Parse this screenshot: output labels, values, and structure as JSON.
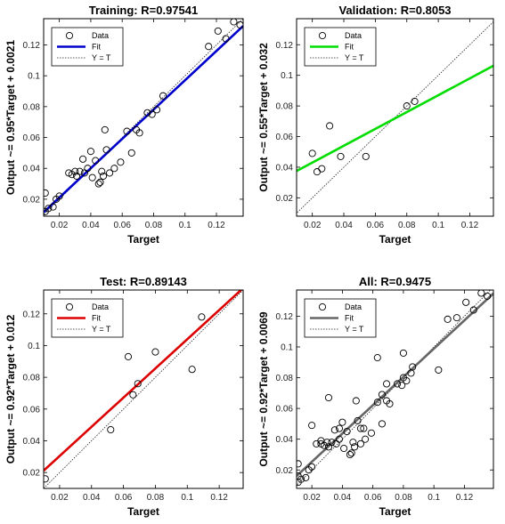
{
  "chart_data": [
    {
      "type": "scatter",
      "title": "Training: R=0.97541",
      "xlabel": "Target",
      "ylabel": "Output ~= 0.95*Target + 0.0021",
      "xlim": [
        0.01,
        0.137
      ],
      "ylim": [
        0.009,
        0.137
      ],
      "xticks": [
        0.02,
        0.04,
        0.06,
        0.08,
        0.1,
        0.12
      ],
      "yticks": [
        0.02,
        0.04,
        0.06,
        0.08,
        0.1,
        0.12
      ],
      "fit": {
        "slope": 0.95,
        "intercept": 0.0021,
        "color": "#0000cc"
      },
      "legend": {
        "position": "top-left",
        "entries": [
          "Data",
          "Fit",
          "Y = T"
        ]
      },
      "points": [
        [
          0.011,
          0.012
        ],
        [
          0.011,
          0.024
        ],
        [
          0.013,
          0.014
        ],
        [
          0.016,
          0.015
        ],
        [
          0.018,
          0.02
        ],
        [
          0.02,
          0.022
        ],
        [
          0.026,
          0.037
        ],
        [
          0.028,
          0.036
        ],
        [
          0.03,
          0.038
        ],
        [
          0.031,
          0.035
        ],
        [
          0.033,
          0.038
        ],
        [
          0.035,
          0.046
        ],
        [
          0.036,
          0.037
        ],
        [
          0.038,
          0.04
        ],
        [
          0.04,
          0.051
        ],
        [
          0.041,
          0.034
        ],
        [
          0.043,
          0.045
        ],
        [
          0.045,
          0.03
        ],
        [
          0.046,
          0.031
        ],
        [
          0.047,
          0.038
        ],
        [
          0.048,
          0.035
        ],
        [
          0.049,
          0.065
        ],
        [
          0.05,
          0.052
        ],
        [
          0.052,
          0.037
        ],
        [
          0.055,
          0.04
        ],
        [
          0.059,
          0.044
        ],
        [
          0.063,
          0.064
        ],
        [
          0.066,
          0.05
        ],
        [
          0.069,
          0.065
        ],
        [
          0.071,
          0.063
        ],
        [
          0.076,
          0.076
        ],
        [
          0.079,
          0.075
        ],
        [
          0.082,
          0.078
        ],
        [
          0.086,
          0.087
        ],
        [
          0.115,
          0.119
        ],
        [
          0.121,
          0.129
        ],
        [
          0.126,
          0.124
        ],
        [
          0.131,
          0.135
        ],
        [
          0.135,
          0.133
        ]
      ]
    },
    {
      "type": "scatter",
      "title": "Validation: R=0.8053",
      "xlabel": "Target",
      "ylabel": "Output ~= 0.55*Target + 0.032",
      "xlim": [
        0.01,
        0.135
      ],
      "ylim": [
        0.008,
        0.137
      ],
      "xticks": [
        0.02,
        0.04,
        0.06,
        0.08,
        0.1,
        0.12
      ],
      "yticks": [
        0.02,
        0.04,
        0.06,
        0.08,
        0.1,
        0.12
      ],
      "fit": {
        "slope": 0.55,
        "intercept": 0.032,
        "color": "#00dd00"
      },
      "legend": {
        "position": "top-left",
        "entries": [
          "Data",
          "Fit",
          "Y = T"
        ]
      },
      "points": [
        [
          0.02,
          0.049
        ],
        [
          0.023,
          0.037
        ],
        [
          0.026,
          0.039
        ],
        [
          0.031,
          0.067
        ],
        [
          0.038,
          0.047
        ],
        [
          0.054,
          0.047
        ],
        [
          0.08,
          0.08
        ],
        [
          0.085,
          0.083
        ]
      ]
    },
    {
      "type": "scatter",
      "title": "Test: R=0.89143",
      "xlabel": "Target",
      "ylabel": "Output ~= 0.92*Target + 0.012",
      "xlim": [
        0.01,
        0.135
      ],
      "ylim": [
        0.01,
        0.135
      ],
      "xticks": [
        0.02,
        0.04,
        0.06,
        0.08,
        0.1,
        0.12
      ],
      "yticks": [
        0.02,
        0.04,
        0.06,
        0.08,
        0.1,
        0.12
      ],
      "fit": {
        "slope": 0.92,
        "intercept": 0.012,
        "color": "#dd0000"
      },
      "legend": {
        "position": "top-left",
        "entries": [
          "Data",
          "Fit",
          "Y = T"
        ]
      },
      "points": [
        [
          0.011,
          0.016
        ],
        [
          0.052,
          0.047
        ],
        [
          0.063,
          0.093
        ],
        [
          0.066,
          0.069
        ],
        [
          0.069,
          0.076
        ],
        [
          0.08,
          0.096
        ],
        [
          0.103,
          0.085
        ],
        [
          0.109,
          0.118
        ]
      ]
    },
    {
      "type": "scatter",
      "title": "All: R=0.9475",
      "xlabel": "Target",
      "ylabel": "Output ~= 0.92*Target + 0.0069",
      "xlim": [
        0.01,
        0.139
      ],
      "ylim": [
        0.008,
        0.137
      ],
      "xticks": [
        0.02,
        0.04,
        0.06,
        0.08,
        0.1,
        0.12
      ],
      "yticks": [
        0.02,
        0.04,
        0.06,
        0.08,
        0.1,
        0.12
      ],
      "fit": {
        "slope": 0.92,
        "intercept": 0.0069,
        "color": "#666666"
      },
      "legend": {
        "position": "top-left",
        "entries": [
          "Data",
          "Fit",
          "Y = T"
        ]
      },
      "points": [
        [
          0.011,
          0.012
        ],
        [
          0.011,
          0.024
        ],
        [
          0.011,
          0.016
        ],
        [
          0.013,
          0.014
        ],
        [
          0.016,
          0.015
        ],
        [
          0.018,
          0.02
        ],
        [
          0.02,
          0.049
        ],
        [
          0.02,
          0.022
        ],
        [
          0.023,
          0.037
        ],
        [
          0.026,
          0.039
        ],
        [
          0.026,
          0.037
        ],
        [
          0.028,
          0.036
        ],
        [
          0.03,
          0.038
        ],
        [
          0.031,
          0.067
        ],
        [
          0.031,
          0.035
        ],
        [
          0.033,
          0.038
        ],
        [
          0.035,
          0.046
        ],
        [
          0.036,
          0.037
        ],
        [
          0.038,
          0.047
        ],
        [
          0.038,
          0.04
        ],
        [
          0.04,
          0.051
        ],
        [
          0.041,
          0.034
        ],
        [
          0.043,
          0.045
        ],
        [
          0.045,
          0.03
        ],
        [
          0.046,
          0.031
        ],
        [
          0.047,
          0.038
        ],
        [
          0.048,
          0.035
        ],
        [
          0.049,
          0.065
        ],
        [
          0.05,
          0.052
        ],
        [
          0.052,
          0.047
        ],
        [
          0.052,
          0.037
        ],
        [
          0.054,
          0.047
        ],
        [
          0.055,
          0.04
        ],
        [
          0.059,
          0.044
        ],
        [
          0.063,
          0.093
        ],
        [
          0.063,
          0.064
        ],
        [
          0.066,
          0.069
        ],
        [
          0.066,
          0.05
        ],
        [
          0.069,
          0.076
        ],
        [
          0.069,
          0.065
        ],
        [
          0.071,
          0.063
        ],
        [
          0.076,
          0.076
        ],
        [
          0.079,
          0.075
        ],
        [
          0.08,
          0.08
        ],
        [
          0.08,
          0.096
        ],
        [
          0.082,
          0.078
        ],
        [
          0.085,
          0.083
        ],
        [
          0.086,
          0.087
        ],
        [
          0.103,
          0.085
        ],
        [
          0.109,
          0.118
        ],
        [
          0.115,
          0.119
        ],
        [
          0.121,
          0.129
        ],
        [
          0.126,
          0.124
        ],
        [
          0.131,
          0.135
        ],
        [
          0.135,
          0.133
        ]
      ]
    }
  ]
}
